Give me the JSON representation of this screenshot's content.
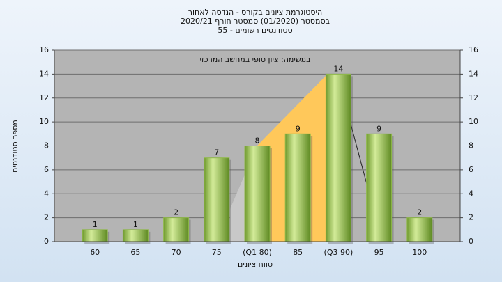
{
  "chart_data": {
    "type": "bar",
    "title": [
      "היסטוגרמת ציונים בקורס - הנדסה לאחור",
      "בסמסטר (01/2020) סמסטר חורף 2020/21",
      "סטודנטים רשומים - 55"
    ],
    "annotation": "במשימה: ציון סופי במחשב המרכזי",
    "x_label": "טווח ציונים",
    "y_label": "מספר סטודנטים",
    "categories": [
      "60",
      "65",
      "70",
      "75",
      "(Q1 80)",
      "85",
      "(Q3 90)",
      "95",
      "100"
    ],
    "values": [
      1,
      1,
      2,
      7,
      8,
      9,
      14,
      9,
      2
    ],
    "color": "#8fb84a",
    "ylim": [
      0,
      16
    ],
    "yticks": [
      0,
      2,
      4,
      6,
      8,
      10,
      12,
      14,
      16
    ],
    "y2lim": [
      0,
      16
    ],
    "y2ticks": [
      0,
      2,
      4,
      6,
      8,
      10,
      12,
      14,
      16
    ],
    "grid": true
  }
}
